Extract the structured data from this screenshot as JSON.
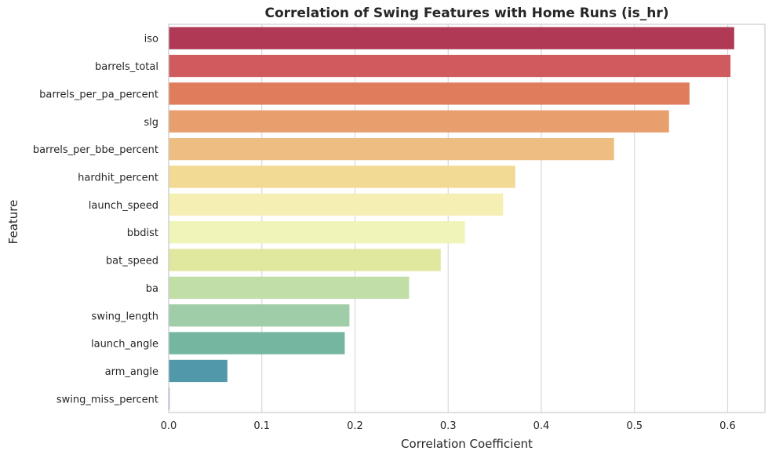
{
  "chart_data": {
    "type": "bar",
    "orientation": "horizontal",
    "title": "Correlation of Swing Features with Home Runs (is_hr)",
    "xlabel": "Correlation Coefficient",
    "ylabel": "Feature",
    "xlim": [
      0,
      0.64
    ],
    "xticks": [
      "0.0",
      "0.1",
      "0.2",
      "0.3",
      "0.4",
      "0.5",
      "0.6"
    ],
    "grid": "vertical",
    "categories": [
      "iso",
      "barrels_total",
      "barrels_per_pa_percent",
      "slg",
      "barrels_per_bbe_percent",
      "hardhit_percent",
      "launch_speed",
      "bbdist",
      "bat_speed",
      "ba",
      "swing_length",
      "launch_angle",
      "arm_angle",
      "swing_miss_percent"
    ],
    "values": [
      0.607,
      0.603,
      0.559,
      0.537,
      0.478,
      0.372,
      0.359,
      0.318,
      0.292,
      0.258,
      0.194,
      0.189,
      0.063,
      0.001
    ],
    "colors": [
      "#b03a55",
      "#cf5b5e",
      "#e07c5c",
      "#e89f6e",
      "#eebd82",
      "#f2d994",
      "#f5efb3",
      "#f0f4b8",
      "#dfe89e",
      "#c1dea7",
      "#9ecda7",
      "#74b6a0",
      "#5298ab",
      "#8092c0"
    ]
  }
}
